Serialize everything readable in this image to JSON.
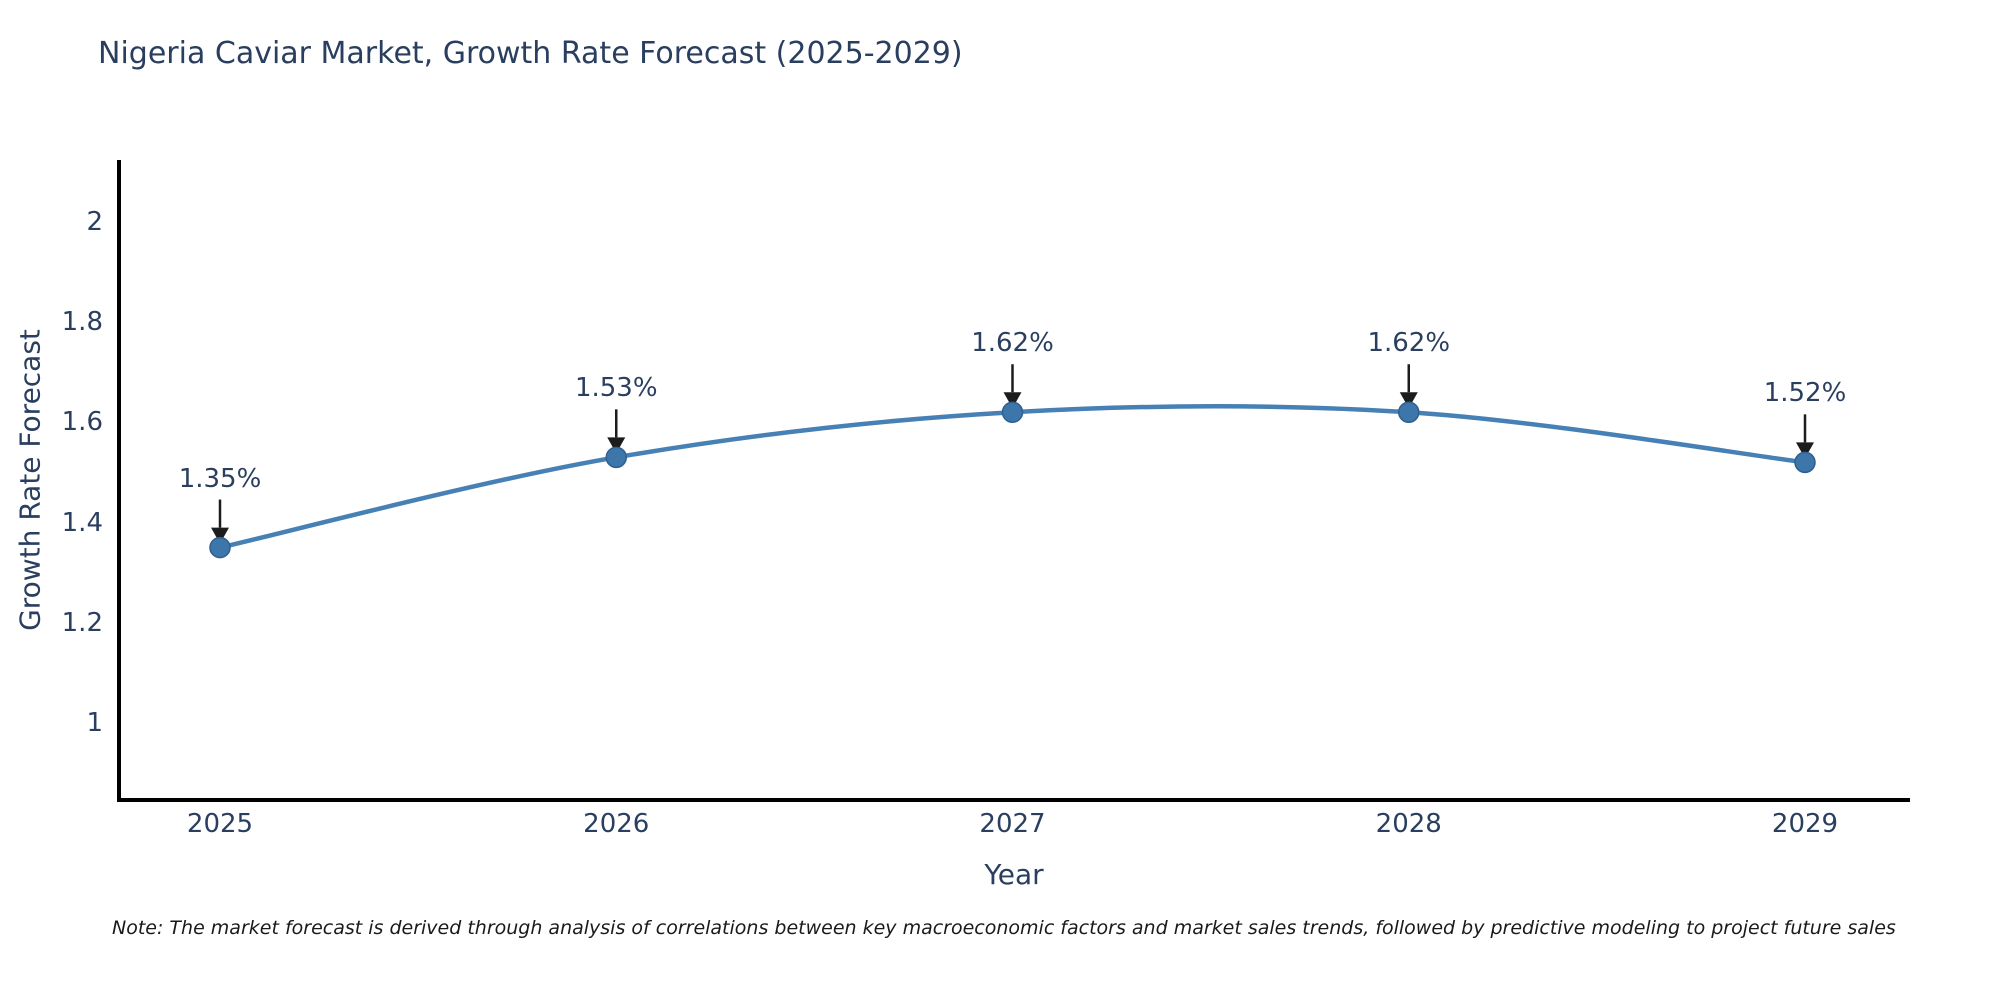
{
  "title": "Nigeria Caviar Market, Growth Rate Forecast (2025-2029)",
  "note": "Note: The market forecast is derived through analysis of correlations between key macroeconomic factors and market sales trends, followed by predictive modeling to project future sales",
  "chart_data": {
    "type": "line",
    "title": "Nigeria Caviar Market, Growth Rate Forecast (2025-2029)",
    "x": [
      2025,
      2026,
      2027,
      2028,
      2029
    ],
    "series": [
      {
        "name": "Growth Rate Forecast",
        "values": [
          1.35,
          1.53,
          1.62,
          1.62,
          1.52
        ]
      }
    ],
    "value_labels": [
      "1.35%",
      "1.53%",
      "1.62%",
      "1.62%",
      "1.52%"
    ],
    "xlabel": "Year",
    "ylabel": "Growth Rate Forecast",
    "xtick_labels": [
      "2025",
      "2026",
      "2027",
      "2028",
      "2029"
    ],
    "yticks": [
      1,
      1.2,
      1.4,
      1.6,
      1.8,
      2
    ],
    "ytick_labels": [
      "1",
      "1.2",
      "1.4",
      "1.6",
      "1.8",
      "2"
    ],
    "ylim": [
      0.85,
      2.11
    ],
    "grid": false,
    "legend": "none",
    "annotation_style": "value label with down arrow to marker",
    "line_color": "#4680b4",
    "marker_color": "#3d76ab",
    "marker_edge_color": "#2f5f8f",
    "arrow_color": "#1c1c1c",
    "axis_color": "#000000",
    "text_color": "#2a3f5f"
  }
}
